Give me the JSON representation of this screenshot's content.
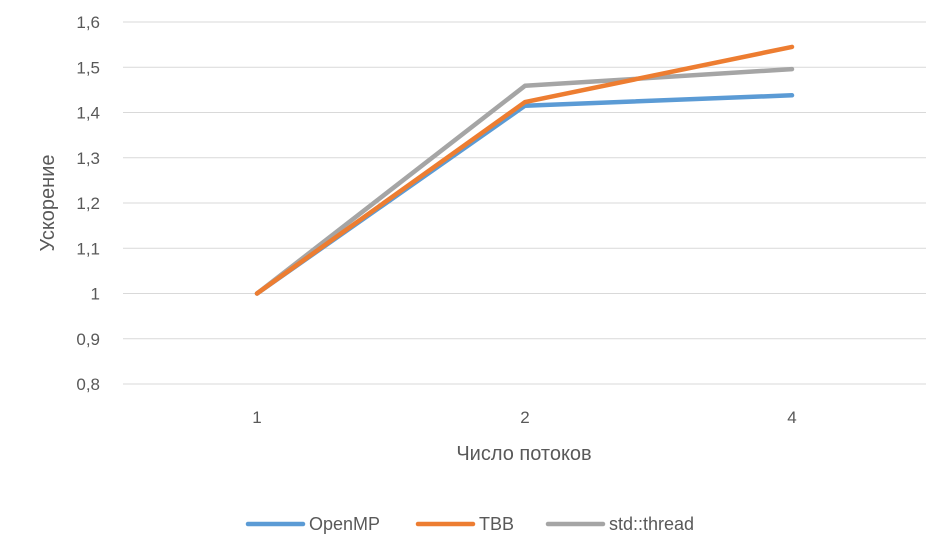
{
  "chart_data": {
    "type": "line",
    "title": "",
    "xlabel": "Число потоков",
    "ylabel": "Ускорение",
    "categories": [
      "1",
      "2",
      "4"
    ],
    "y_ticks": [
      "0,8",
      "0,9",
      "1",
      "1,1",
      "1,2",
      "1,3",
      "1,4",
      "1,5",
      "1,6"
    ],
    "ylim": [
      0.8,
      1.6
    ],
    "grid": "horizontal",
    "legend": "bottom",
    "series": [
      {
        "name": "OpenMP",
        "color": "#5B9BD5",
        "values": [
          1.0,
          1.415,
          1.438
        ]
      },
      {
        "name": "TBB",
        "color": "#ED7D31",
        "values": [
          1.0,
          1.423,
          1.545
        ]
      },
      {
        "name": "std::thread",
        "color": "#A5A5A5",
        "values": [
          1.0,
          1.459,
          1.496
        ]
      }
    ]
  }
}
